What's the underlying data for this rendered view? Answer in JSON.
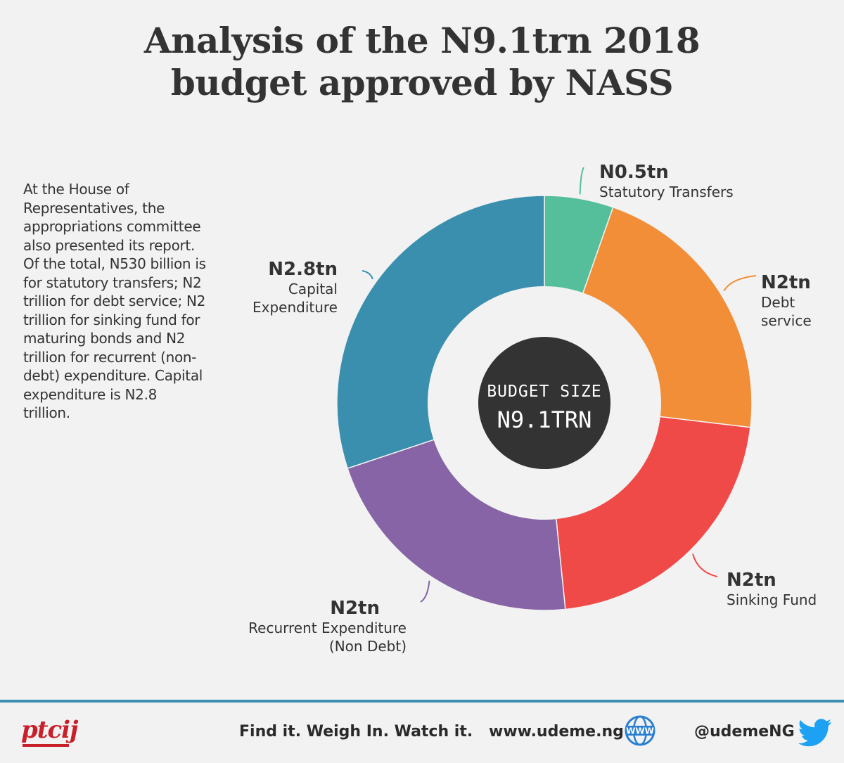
{
  "title_line1": "Analysis of the N9.1trn 2018",
  "title_line2": "budget approved by NASS",
  "description": "At the House of Representatives, the appropriations committee also presented its report. Of the total, N530 billion is for statutory transfers; N2 trillion for debt service; N2 trillion for sinking fund for maturing bonds and N2 trillion for recurrent (non-debt) expenditure. Capital expenditure is N2.8 trillion.",
  "center": {
    "line1": "BUDGET SIZE",
    "line2": "N9.1TRN"
  },
  "chart_data": {
    "type": "pie",
    "variant": "donut",
    "unit": "trillion Naira",
    "categories": [
      "Statutory Transfers",
      "Debt service",
      "Sinking Fund",
      "Recurrent Expenditure (Non Debt)",
      "Capital Expenditure"
    ],
    "values": [
      0.5,
      2,
      2,
      2,
      2.8
    ],
    "value_labels": [
      "N0.5tn",
      "N2tn",
      "N2tn",
      "N2tn",
      "N2.8tn"
    ],
    "colors": [
      "#55bf9c",
      "#f28e38",
      "#ef4a48",
      "#8664a5",
      "#3a8fae"
    ],
    "start_angle_deg": 0,
    "direction": "clockwise"
  },
  "footer": {
    "logo": "ptcij",
    "slogan": "Find it. Weigh In. Watch it.",
    "website": "www.udeme.ng",
    "www_icon_text": "WWW",
    "handle": "@udemeNG"
  },
  "icons": {
    "globe": "globe-icon",
    "twitter": "twitter-bird-icon"
  }
}
